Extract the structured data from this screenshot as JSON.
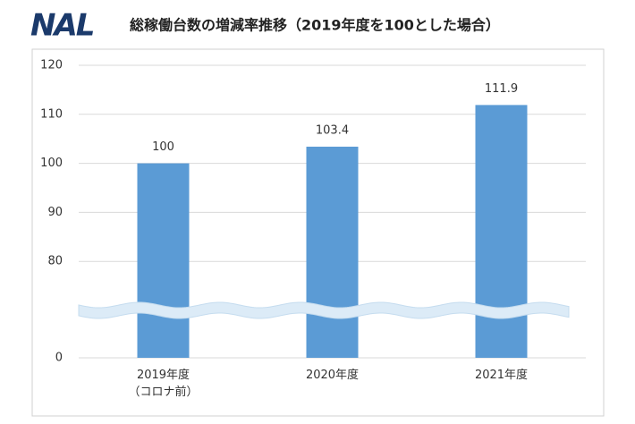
{
  "logo": "NAL",
  "chart_data": {
    "type": "bar",
    "title": "総稼働台数の増減率推移（2019年度を100とした場合）",
    "categories": [
      "2019年度\n（コロナ前）",
      "2020年度",
      "2021年度"
    ],
    "values": [
      100,
      103.4,
      111.9
    ],
    "color": "#5b9bd5",
    "ylim": [
      0,
      120
    ],
    "yticks": [
      0,
      80,
      90,
      100,
      110,
      120
    ],
    "axis_break": [
      0,
      70
    ],
    "grid": true
  }
}
